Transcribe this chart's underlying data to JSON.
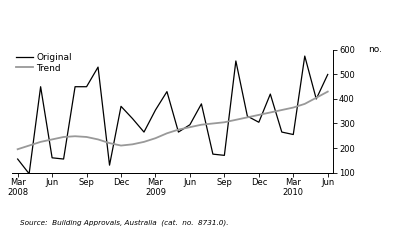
{
  "x_tick_positions": [
    0,
    3,
    6,
    9,
    12,
    15,
    18,
    21,
    24,
    27
  ],
  "x_tick_labels": [
    "Mar\n2008",
    "Jun",
    "Sep",
    "Dec",
    "Mar\n2009",
    "Jun",
    "Sep",
    "Dec",
    "Mar\n2010",
    "Jun"
  ],
  "original_x": [
    0,
    1,
    2,
    3,
    4,
    5,
    6,
    7,
    8,
    9,
    10,
    11,
    12,
    13,
    14,
    15,
    16,
    17,
    18,
    19,
    20,
    21,
    22,
    23,
    24,
    25,
    26,
    27
  ],
  "original_y": [
    155,
    95,
    450,
    160,
    155,
    450,
    450,
    530,
    130,
    370,
    320,
    265,
    355,
    430,
    265,
    295,
    380,
    175,
    170,
    555,
    330,
    305,
    420,
    265,
    255,
    575,
    400,
    500
  ],
  "trend_x": [
    0,
    1,
    2,
    3,
    4,
    5,
    6,
    7,
    8,
    9,
    10,
    11,
    12,
    13,
    14,
    15,
    16,
    17,
    18,
    19,
    20,
    21,
    22,
    23,
    24,
    25,
    26,
    27
  ],
  "trend_y": [
    195,
    210,
    225,
    235,
    245,
    248,
    245,
    235,
    220,
    210,
    215,
    225,
    240,
    260,
    275,
    285,
    295,
    300,
    305,
    315,
    325,
    335,
    345,
    355,
    365,
    380,
    405,
    430
  ],
  "original_color": "#000000",
  "trend_color": "#999999",
  "original_lw": 0.9,
  "trend_lw": 1.3,
  "ylim": [
    100,
    600
  ],
  "yticks": [
    100,
    200,
    300,
    400,
    500,
    600
  ],
  "ylabel_right": "no.",
  "legend_entries": [
    "Original",
    "Trend"
  ],
  "source_text": "Source:  Building Approvals, Australia  (cat.  no.  8731.0).",
  "bg_color": "#ffffff"
}
